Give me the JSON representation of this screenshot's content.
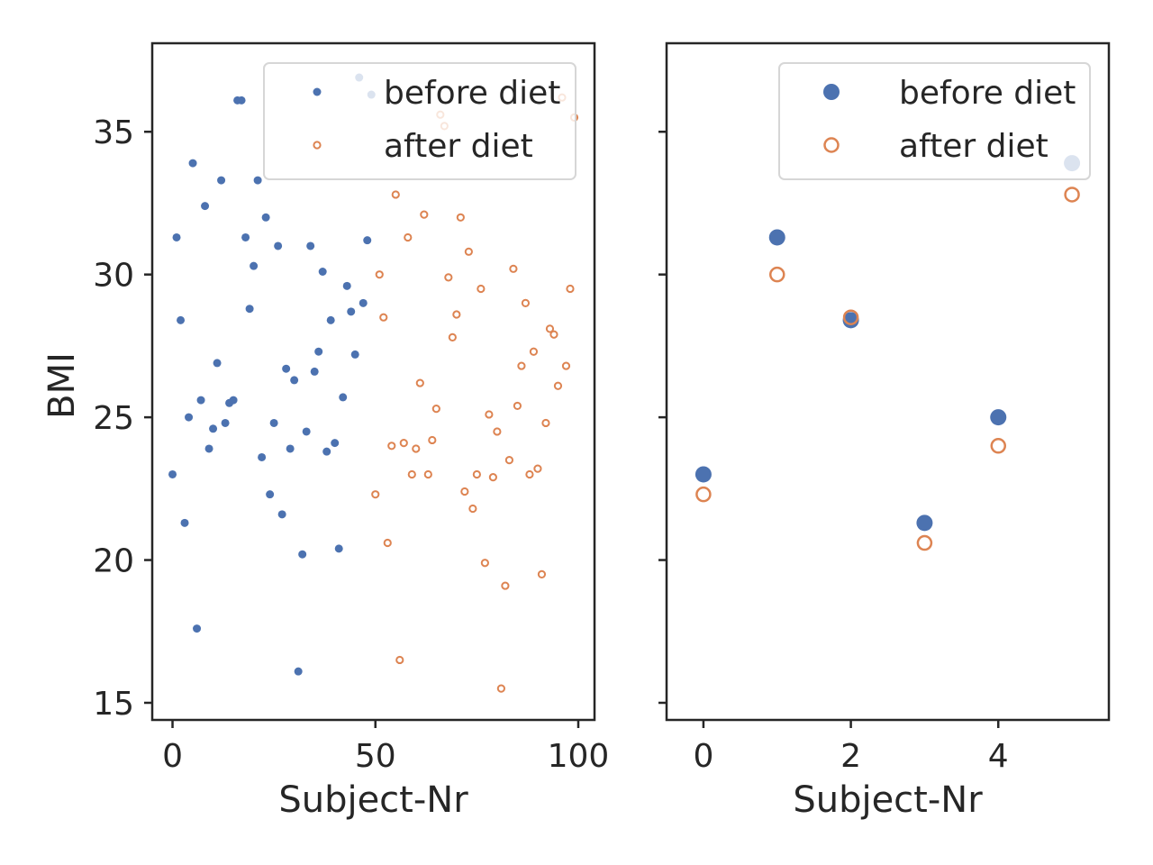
{
  "colors": {
    "before": "#4c72b0",
    "after": "#dd8452",
    "axis": "#262626"
  },
  "chart_data": [
    {
      "type": "scatter",
      "xlabel": "Subject-Nr",
      "ylabel": "BMI",
      "xlim": [
        -5,
        104
      ],
      "ylim": [
        14.4,
        38.1
      ],
      "xticks": [
        0,
        50,
        100
      ],
      "yticks": [
        15,
        20,
        25,
        30,
        35
      ],
      "legend": "top-right",
      "marker_size": "small",
      "series": [
        {
          "name": "before diet",
          "marker": "filled",
          "color": "#4c72b0",
          "x": [
            0,
            1,
            2,
            3,
            4,
            5,
            6,
            7,
            8,
            9,
            10,
            11,
            12,
            13,
            14,
            15,
            16,
            17,
            18,
            19,
            20,
            21,
            22,
            23,
            24,
            25,
            26,
            27,
            28,
            29,
            30,
            31,
            32,
            33,
            34,
            35,
            36,
            37,
            38,
            39,
            40,
            41,
            42,
            43,
            44,
            45,
            46,
            47,
            48,
            49
          ],
          "y": [
            23.0,
            31.3,
            28.4,
            21.3,
            25.0,
            33.9,
            17.6,
            25.6,
            32.4,
            23.9,
            24.6,
            26.9,
            33.3,
            24.8,
            25.5,
            25.6,
            36.1,
            36.1,
            31.3,
            28.8,
            30.3,
            33.3,
            23.6,
            32.0,
            22.3,
            24.8,
            31.0,
            21.6,
            26.7,
            23.9,
            26.3,
            16.1,
            20.2,
            24.5,
            31.0,
            26.6,
            27.3,
            30.1,
            23.8,
            28.4,
            24.1,
            20.4,
            25.7,
            29.6,
            28.7,
            27.2,
            36.9,
            29.0,
            31.2,
            36.3
          ]
        },
        {
          "name": "after diet",
          "marker": "hollow",
          "color": "#dd8452",
          "x": [
            50,
            51,
            52,
            53,
            54,
            55,
            56,
            57,
            58,
            59,
            60,
            61,
            62,
            63,
            64,
            65,
            66,
            67,
            68,
            69,
            70,
            71,
            72,
            73,
            74,
            75,
            76,
            77,
            78,
            79,
            80,
            81,
            82,
            83,
            84,
            85,
            86,
            87,
            88,
            89,
            90,
            91,
            92,
            93,
            94,
            95,
            96,
            97,
            98,
            99
          ],
          "y": [
            22.3,
            30.0,
            28.5,
            20.6,
            24.0,
            32.8,
            16.5,
            24.1,
            31.3,
            23.0,
            23.9,
            26.2,
            32.1,
            23.0,
            24.2,
            25.3,
            35.6,
            35.2,
            29.9,
            27.8,
            28.6,
            32.0,
            22.4,
            30.8,
            21.8,
            23.0,
            29.5,
            19.9,
            25.1,
            22.9,
            24.5,
            15.5,
            19.1,
            23.5,
            30.2,
            25.4,
            26.8,
            29.0,
            23.0,
            27.3,
            23.2,
            19.5,
            24.8,
            28.1,
            27.9,
            26.1,
            36.2,
            26.8,
            29.5,
            35.5
          ]
        }
      ]
    },
    {
      "type": "scatter",
      "xlabel": "Subject-Nr",
      "ylabel": "",
      "xlim": [
        -0.5,
        5.5
      ],
      "ylim": [
        14.4,
        38.1
      ],
      "xticks": [
        0,
        2,
        4
      ],
      "yticks": [
        15,
        20,
        25,
        30,
        35
      ],
      "legend": "top-right",
      "marker_size": "large",
      "series": [
        {
          "name": "before diet",
          "marker": "filled",
          "color": "#4c72b0",
          "x": [
            0,
            1,
            2,
            3,
            4,
            5
          ],
          "y": [
            23.0,
            31.3,
            28.4,
            21.3,
            25.0,
            33.9
          ]
        },
        {
          "name": "after diet",
          "marker": "hollow",
          "color": "#dd8452",
          "x": [
            0,
            1,
            2,
            3,
            4,
            5
          ],
          "y": [
            22.3,
            30.0,
            28.5,
            20.6,
            24.0,
            32.8
          ]
        }
      ]
    }
  ]
}
